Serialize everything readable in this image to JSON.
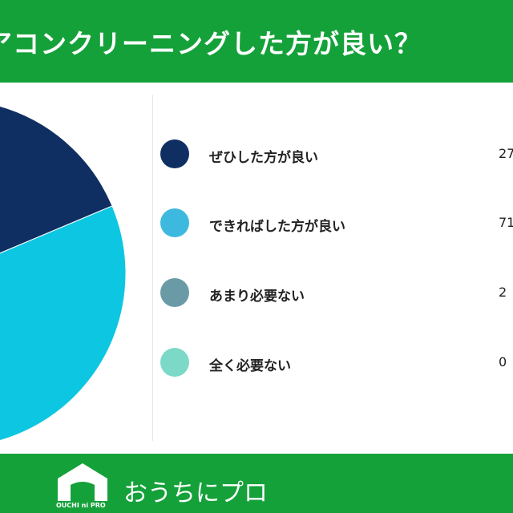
{
  "header": {
    "title": "アコンクリーニングした方が良い？"
  },
  "chart_data": {
    "type": "pie",
    "title": "アコンクリーニングした方が良い？",
    "categories": [
      "ぜひした方が良い",
      "できればした方が良い",
      "あまり必要ない",
      "全く必要ない"
    ],
    "value_labels": [
      "27",
      "71",
      "2",
      "0"
    ],
    "values": [
      27,
      71,
      2,
      0
    ],
    "colors": [
      "#0f2f63",
      "#0dc6e2",
      "#6a9aa6",
      "#7cd9c8"
    ],
    "legend_colors": [
      "#0f2f63",
      "#3db9df",
      "#6a9aa6",
      "#7cd9c8"
    ],
    "legend": "right"
  },
  "footer": {
    "logo_text": "OUCHI ni PRO",
    "brand": "おうちにプロ"
  }
}
